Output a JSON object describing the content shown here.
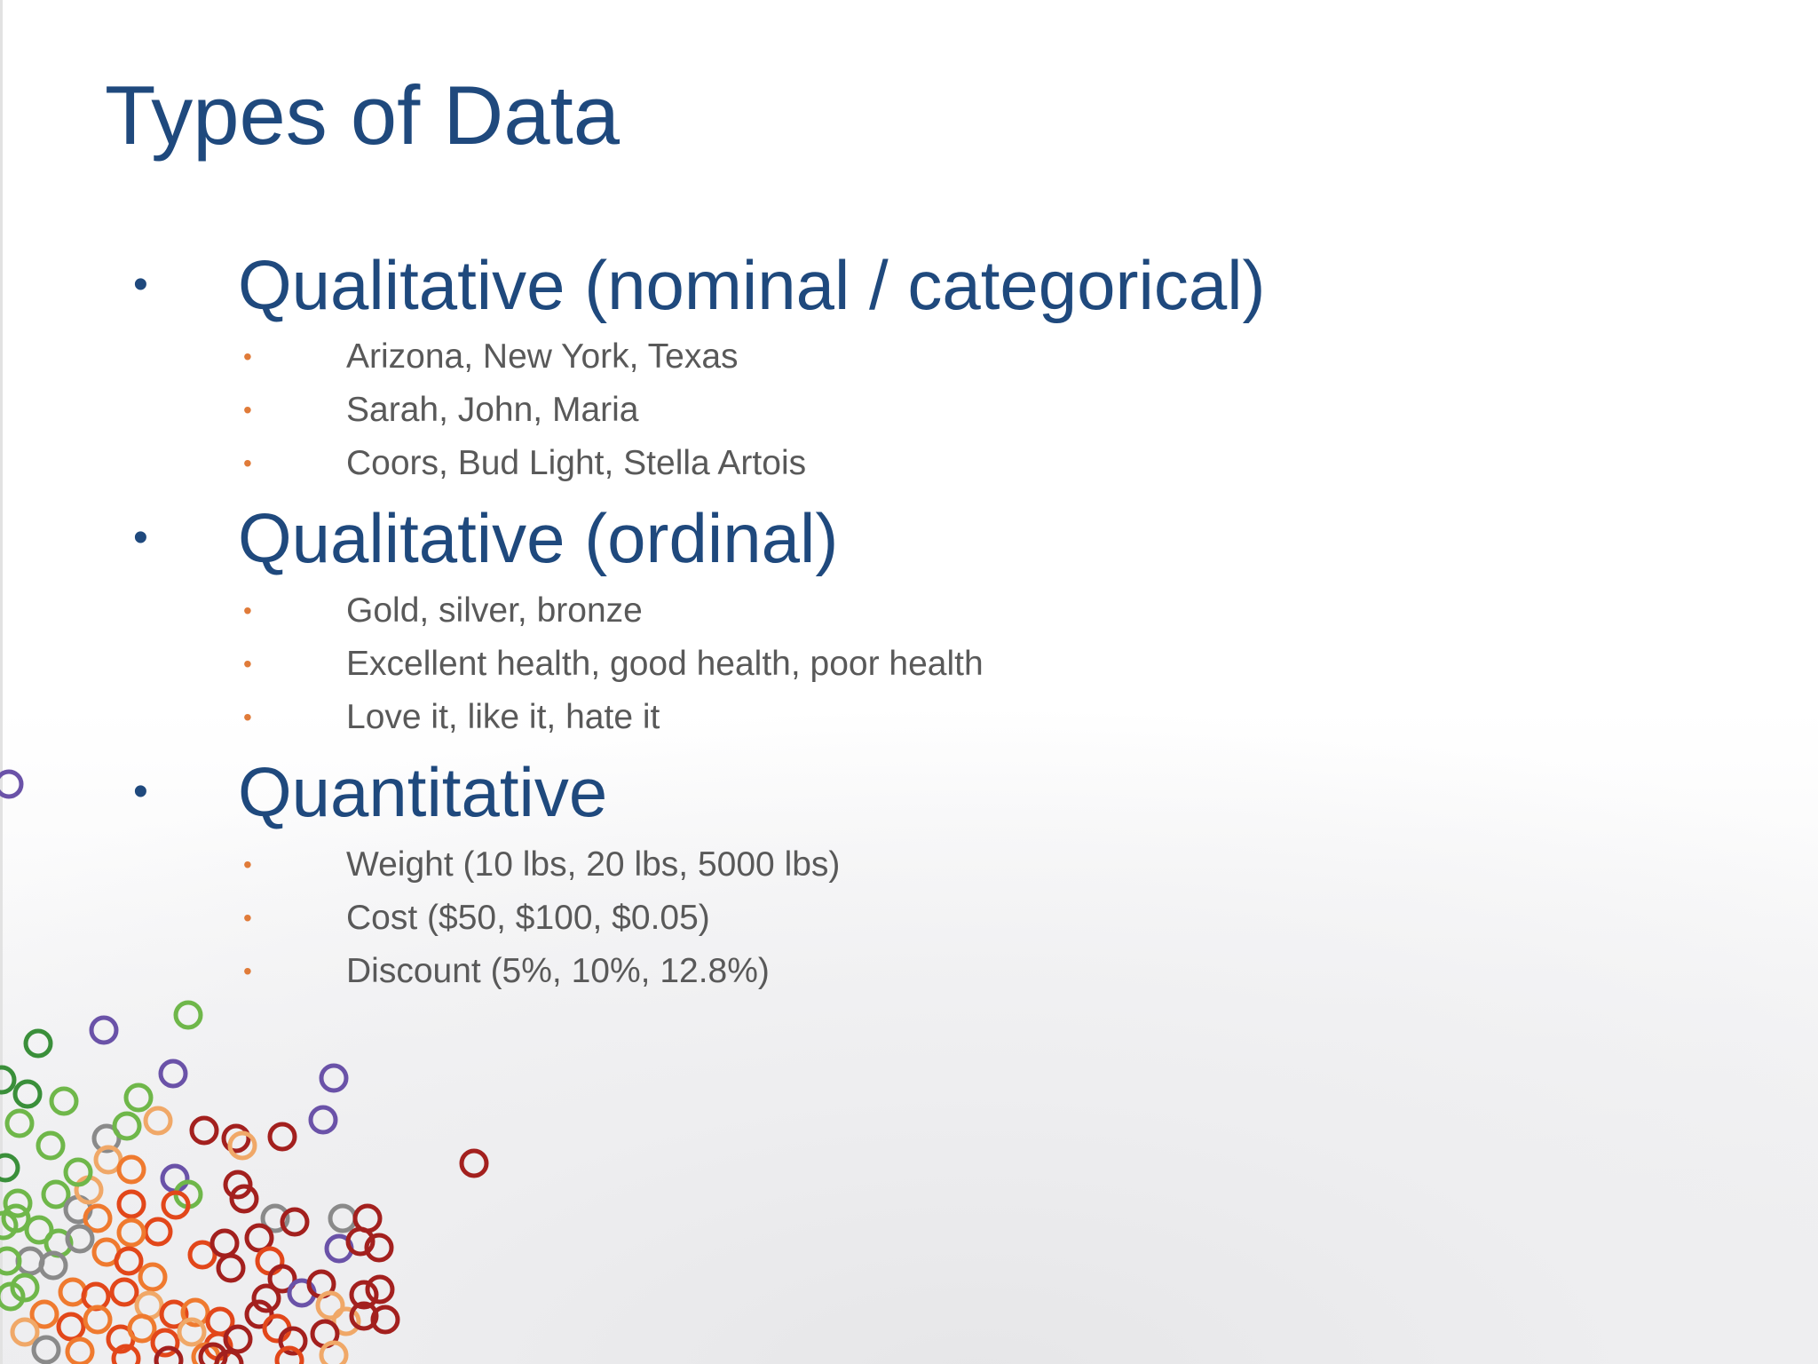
{
  "slide": {
    "title": "Types of Data",
    "sections": [
      {
        "heading": "Qualitative (nominal / categorical)",
        "items": [
          "Arizona, New York, Texas",
          "Sarah, John, Maria",
          "Coors, Bud Light, Stella Artois"
        ]
      },
      {
        "heading": "Qualitative (ordinal)",
        "items": [
          "Gold, silver, bronze",
          "Excellent health, good health, poor health",
          "Love it, like it, hate it"
        ]
      },
      {
        "heading": "Quantitative",
        "items": [
          "Weight (10 lbs, 20 lbs, 5000 lbs)",
          "Cost ($50, $100, $0.05)",
          "Discount (5%, 10%, 12.8%)"
        ]
      }
    ]
  },
  "theme": {
    "title_color": "#1f497d",
    "sub_bullet_color": "#e07b39",
    "sub_text_color": "#595959",
    "decoration_colors": [
      "#3a8f3a",
      "#6fb74a",
      "#6a52a8",
      "#8a8a8a",
      "#f0a868",
      "#ef7a2f",
      "#e2471a",
      "#a3201e"
    ]
  }
}
